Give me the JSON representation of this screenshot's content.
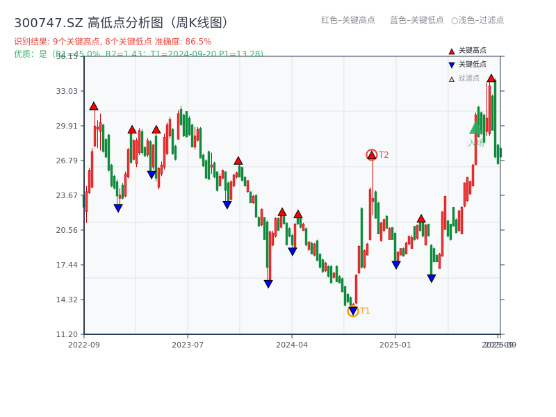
{
  "title": "300747.SZ 高低点分析图（周K线图）",
  "header_legend": {
    "high": "红色–关键高点",
    "low": "蓝色–关键低点",
    "filtered": "○浅色–过滤点"
  },
  "result_line": "识别结果: 9个关键高点, 8个关键低点  准确度: 86.5%",
  "quality_line": "优质：是（R1=45.0%, R2=1.43；T1=2024-09-20 P1=13.28)",
  "legend": [
    {
      "label": "关键高点",
      "marker": "triangle-up",
      "color": "#ff0000"
    },
    {
      "label": "关键低点",
      "marker": "triangle-down",
      "color": "#0000ff"
    },
    {
      "label": "过滤点",
      "marker": "triangle-up-small",
      "color": "#ffd6d6"
    }
  ],
  "colors": {
    "up_candle": "#ee3a3a",
    "up_candle_edge": "#c80000",
    "down_candle": "#0d8a3b",
    "high_marker": "#ff0000",
    "low_marker": "#0000ff",
    "t1_ring": "#f39c12",
    "t2_ring": "#e74c3c",
    "entry": "#27ae60",
    "grid": "#e1e5ea",
    "spine": "#2c3e50",
    "plot_bg": "#f7f9fb",
    "tick_text": "#4d5560"
  },
  "chart_data": {
    "type": "candlestick",
    "title": "300747.SZ 高低点分析图（周K线图）",
    "xlabel": "",
    "ylabel": "",
    "ylim": [
      11.2,
      36.15
    ],
    "yticks": [
      "36.15",
      "33.03",
      "29.91",
      "26.79",
      "23.67",
      "20.56",
      "17.44",
      "14.32",
      "11.20"
    ],
    "xticks": [
      {
        "label": "2022-09",
        "index": 0.1
      },
      {
        "label": "2023-07",
        "index": 37.4
      },
      {
        "label": "2024-04",
        "index": 74.9
      },
      {
        "label": "2025-01",
        "index": 112.1
      },
      {
        "label": "2025-09",
        "index": 148.9
      },
      {
        "label": "2025-09",
        "index": 149.9
      }
    ],
    "grid": {
      "x_index": [
        18.6,
        37.4,
        56.1,
        74.9,
        93.6,
        112.4,
        131.1
      ],
      "y_price": [
        31.22,
        26.23,
        21.24,
        16.25
      ]
    },
    "candle_format": [
      "open",
      "close",
      "high",
      "low"
    ],
    "candles": [
      [
        23.6,
        22.6,
        23.7,
        22.5
      ],
      [
        22.2,
        24.0,
        24.5,
        21.2
      ],
      [
        23.9,
        25.9,
        26.1,
        23.8
      ],
      [
        24.4,
        27.6,
        27.9,
        24.3
      ],
      [
        28.1,
        29.9,
        31.6,
        28.0
      ],
      [
        29.6,
        29.8,
        30.4,
        27.9
      ],
      [
        29.4,
        30.2,
        31.0,
        27.7
      ],
      [
        30.0,
        27.6,
        30.1,
        27.5
      ],
      [
        28.7,
        27.1,
        28.8,
        27.0
      ],
      [
        29.1,
        25.9,
        29.2,
        25.8
      ],
      [
        26.4,
        24.5,
        26.5,
        24.4
      ],
      [
        25.4,
        24.3,
        25.5,
        24.2
      ],
      [
        24.9,
        23.6,
        25.1,
        22.6
      ],
      [
        23.4,
        23.7,
        24.3,
        22.8
      ],
      [
        24.6,
        23.4,
        24.8,
        23.3
      ],
      [
        23.6,
        25.6,
        25.8,
        23.5
      ],
      [
        25.3,
        27.8,
        27.9,
        25.2
      ],
      [
        29.2,
        26.6,
        29.3,
        26.5
      ],
      [
        26.9,
        28.6,
        28.7,
        26.8
      ],
      [
        26.5,
        28.6,
        28.8,
        26.2
      ],
      [
        27.5,
        29.5,
        29.7,
        27.3
      ],
      [
        29.4,
        27.5,
        29.6,
        27.3
      ],
      [
        28.0,
        27.2,
        28.0,
        27.1
      ],
      [
        27.3,
        28.6,
        28.8,
        27.1
      ],
      [
        28.5,
        25.9,
        28.6,
        25.6
      ],
      [
        26.2,
        28.2,
        28.3,
        26.0
      ],
      [
        29.0,
        25.2,
        29.3,
        24.9
      ],
      [
        24.4,
        26.1,
        26.2,
        24.2
      ],
      [
        25.6,
        26.4,
        26.7,
        25.4
      ],
      [
        26.2,
        28.9,
        29.2,
        26.0
      ],
      [
        27.4,
        30.0,
        30.2,
        27.3
      ],
      [
        29.0,
        30.5,
        30.7,
        28.8
      ],
      [
        29.6,
        27.4,
        29.7,
        27.3
      ],
      [
        28.1,
        26.9,
        28.2,
        26.8
      ],
      [
        28.7,
        31.0,
        31.3,
        28.7
      ],
      [
        31.4,
        30.0,
        31.7,
        29.9
      ],
      [
        30.9,
        29.0,
        31.0,
        28.9
      ],
      [
        31.2,
        28.9,
        31.2,
        28.9
      ],
      [
        30.6,
        29.1,
        30.8,
        29.0
      ],
      [
        30.0,
        28.0,
        30.1,
        28.0
      ],
      [
        28.0,
        29.0,
        29.8,
        27.8
      ],
      [
        28.6,
        29.6,
        29.8,
        28.5
      ],
      [
        29.7,
        27.0,
        29.8,
        27.0
      ],
      [
        27.3,
        26.3,
        27.4,
        26.2
      ],
      [
        26.8,
        25.2,
        26.9,
        25.2
      ],
      [
        27.6,
        25.1,
        27.7,
        25.1
      ],
      [
        26.2,
        26.4,
        27.5,
        25.6
      ],
      [
        26.6,
        25.3,
        26.7,
        25.2
      ],
      [
        25.8,
        24.1,
        25.8,
        24.0
      ],
      [
        24.5,
        25.4,
        25.6,
        24.5
      ],
      [
        25.2,
        25.9,
        26.0,
        25.1
      ],
      [
        25.8,
        24.1,
        25.8,
        23.0
      ],
      [
        24.8,
        23.2,
        24.9,
        23.0
      ],
      [
        23.3,
        24.9,
        25.0,
        23.2
      ],
      [
        24.5,
        25.5,
        25.6,
        24.4
      ],
      [
        25.3,
        25.7,
        25.8,
        25.2
      ],
      [
        26.3,
        25.3,
        26.5,
        25.3
      ],
      [
        26.2,
        25.0,
        26.2,
        24.9
      ],
      [
        25.3,
        24.5,
        25.4,
        24.5
      ],
      [
        24.0,
        25.0,
        25.0,
        23.9
      ],
      [
        24.0,
        23.0,
        24.0,
        23.0
      ],
      [
        23.0,
        23.6,
        23.7,
        22.9
      ],
      [
        23.7,
        21.7,
        23.7,
        21.7
      ],
      [
        21.7,
        20.9,
        21.8,
        20.9
      ],
      [
        21.0,
        22.4,
        22.5,
        20.9
      ],
      [
        21.7,
        19.7,
        21.7,
        19.7
      ],
      [
        21.3,
        17.2,
        21.4,
        15.9
      ],
      [
        16.0,
        20.4,
        20.5,
        15.8
      ],
      [
        19.2,
        20.3,
        20.5,
        19.1
      ],
      [
        20.0,
        21.6,
        21.7,
        19.9
      ],
      [
        21.6,
        20.5,
        21.7,
        20.5
      ],
      [
        20.8,
        21.8,
        21.9,
        20.7
      ],
      [
        21.9,
        21.1,
        22.1,
        21.1
      ],
      [
        21.2,
        19.2,
        21.2,
        19.2
      ],
      [
        20.7,
        20.0,
        20.8,
        19.9
      ],
      [
        20.1,
        19.2,
        20.2,
        18.6
      ],
      [
        18.9,
        21.1,
        21.2,
        18.8
      ],
      [
        21.7,
        21.1,
        21.9,
        21.0
      ],
      [
        21.6,
        20.8,
        21.7,
        20.7
      ],
      [
        20.5,
        21.1,
        21.2,
        20.5
      ],
      [
        20.7,
        19.2,
        20.8,
        19.1
      ],
      [
        18.8,
        19.5,
        19.5,
        18.7
      ],
      [
        19.4,
        18.4,
        19.5,
        18.4
      ],
      [
        18.3,
        19.3,
        19.4,
        18.2
      ],
      [
        19.6,
        17.8,
        19.7,
        17.8
      ],
      [
        18.4,
        17.2,
        18.5,
        17.1
      ],
      [
        17.9,
        16.8,
        18.0,
        16.7
      ],
      [
        16.9,
        17.6,
        17.7,
        16.8
      ],
      [
        17.3,
        16.4,
        17.4,
        16.3
      ],
      [
        17.3,
        15.8,
        17.4,
        15.8
      ],
      [
        16.3,
        16.7,
        16.8,
        16.2
      ],
      [
        17.3,
        15.9,
        17.4,
        15.9
      ],
      [
        16.4,
        15.8,
        16.5,
        15.8
      ],
      [
        16.2,
        15.0,
        16.3,
        15.0
      ],
      [
        15.5,
        13.8,
        15.5,
        13.7
      ],
      [
        14.8,
        14.1,
        14.9,
        14.0
      ],
      [
        14.5,
        13.8,
        14.6,
        13.7
      ],
      [
        13.6,
        13.9,
        14.0,
        13.28
      ],
      [
        14.0,
        16.5,
        16.6,
        13.9
      ],
      [
        16.7,
        19.1,
        19.2,
        16.6
      ],
      [
        22.5,
        17.2,
        22.6,
        17.1
      ],
      [
        17.2,
        18.7,
        18.8,
        17.1
      ],
      [
        18.3,
        19.3,
        19.4,
        18.3
      ],
      [
        19.7,
        24.2,
        24.4,
        19.6
      ],
      [
        23.1,
        23.4,
        27.3,
        21.9
      ],
      [
        24.0,
        21.6,
        24.1,
        21.6
      ],
      [
        23.0,
        20.2,
        23.1,
        20.2
      ],
      [
        19.6,
        21.2,
        21.3,
        19.5
      ],
      [
        20.5,
        21.5,
        21.6,
        20.4
      ],
      [
        21.8,
        20.7,
        21.9,
        20.7
      ],
      [
        19.7,
        20.7,
        20.8,
        19.7
      ],
      [
        20.8,
        19.7,
        20.8,
        19.7
      ],
      [
        20.3,
        17.7,
        20.3,
        17.5
      ],
      [
        17.6,
        18.6,
        18.6,
        17.6
      ],
      [
        18.3,
        18.9,
        18.9,
        18.3
      ],
      [
        18.9,
        18.2,
        19.0,
        18.2
      ],
      [
        18.4,
        19.4,
        19.5,
        18.4
      ],
      [
        19.3,
        20.0,
        20.0,
        19.2
      ],
      [
        18.9,
        19.9,
        20.1,
        18.9
      ],
      [
        20.9,
        19.7,
        20.9,
        19.6
      ],
      [
        19.8,
        21.0,
        21.0,
        19.7
      ],
      [
        21.2,
        20.5,
        21.5,
        20.4
      ],
      [
        21.2,
        20.0,
        21.3,
        19.9
      ],
      [
        19.2,
        21.0,
        21.1,
        19.2
      ],
      [
        21.1,
        20.0,
        21.1,
        20.0
      ],
      [
        19.2,
        16.5,
        19.3,
        16.3
      ],
      [
        18.9,
        17.7,
        19.0,
        17.7
      ],
      [
        18.3,
        17.7,
        18.4,
        17.7
      ],
      [
        17.1,
        18.4,
        18.5,
        17.1
      ],
      [
        18.2,
        22.2,
        22.2,
        18.2
      ],
      [
        20.6,
        23.6,
        23.6,
        20.6
      ],
      [
        21.4,
        20.0,
        21.4,
        19.9
      ],
      [
        21.1,
        19.7,
        21.1,
        19.6
      ],
      [
        22.6,
        20.9,
        22.6,
        20.9
      ],
      [
        21.5,
        20.3,
        21.6,
        20.3
      ],
      [
        20.5,
        22.3,
        22.3,
        20.4
      ],
      [
        20.2,
        22.6,
        22.7,
        20.2
      ],
      [
        22.7,
        24.8,
        24.8,
        22.6
      ],
      [
        23.2,
        25.3,
        25.3,
        23.1
      ],
      [
        23.8,
        24.9,
        25.0,
        23.7
      ],
      [
        24.5,
        26.4,
        26.5,
        24.5
      ],
      [
        26.4,
        30.9,
        31.1,
        26.4
      ],
      [
        31.6,
        28.9,
        31.7,
        28.9
      ],
      [
        31.1,
        29.2,
        31.2,
        29.1
      ],
      [
        30.9,
        28.4,
        31.0,
        28.4
      ],
      [
        29.4,
        30.6,
        33.8,
        29.0
      ],
      [
        29.2,
        33.5,
        34.0,
        29.0
      ],
      [
        32.6,
        29.5,
        32.7,
        29.5
      ],
      [
        34.0,
        27.1,
        34.2,
        27.0
      ],
      [
        28.2,
        26.5,
        28.3,
        26.4
      ],
      [
        27.9,
        27.1,
        28.0,
        27.1
      ]
    ],
    "key_highs": [
      {
        "index": 3.6,
        "price": 31.7
      },
      {
        "index": 17.4,
        "price": 29.6
      },
      {
        "index": 26.1,
        "price": 29.6
      },
      {
        "index": 55.6,
        "price": 26.8
      },
      {
        "index": 71.4,
        "price": 22.2
      },
      {
        "index": 77.1,
        "price": 22.0
      },
      {
        "index": 103.6,
        "price": 27.3,
        "label": "T2"
      },
      {
        "index": 121.4,
        "price": 21.6
      },
      {
        "index": 146.6,
        "price": 34.2
      }
    ],
    "key_lows": [
      {
        "index": 12.4,
        "price": 22.5
      },
      {
        "index": 24.4,
        "price": 25.5
      },
      {
        "index": 51.6,
        "price": 22.8
      },
      {
        "index": 66.4,
        "price": 15.7
      },
      {
        "index": 75.1,
        "price": 18.6
      },
      {
        "index": 96.9,
        "price": 13.28,
        "label": "T1"
      },
      {
        "index": 112.4,
        "price": 17.4
      },
      {
        "index": 125.1,
        "price": 16.2
      }
    ],
    "entry": {
      "index": 141.1,
      "price": 29.8,
      "label": "入场"
    },
    "legend_position": "upper right"
  }
}
